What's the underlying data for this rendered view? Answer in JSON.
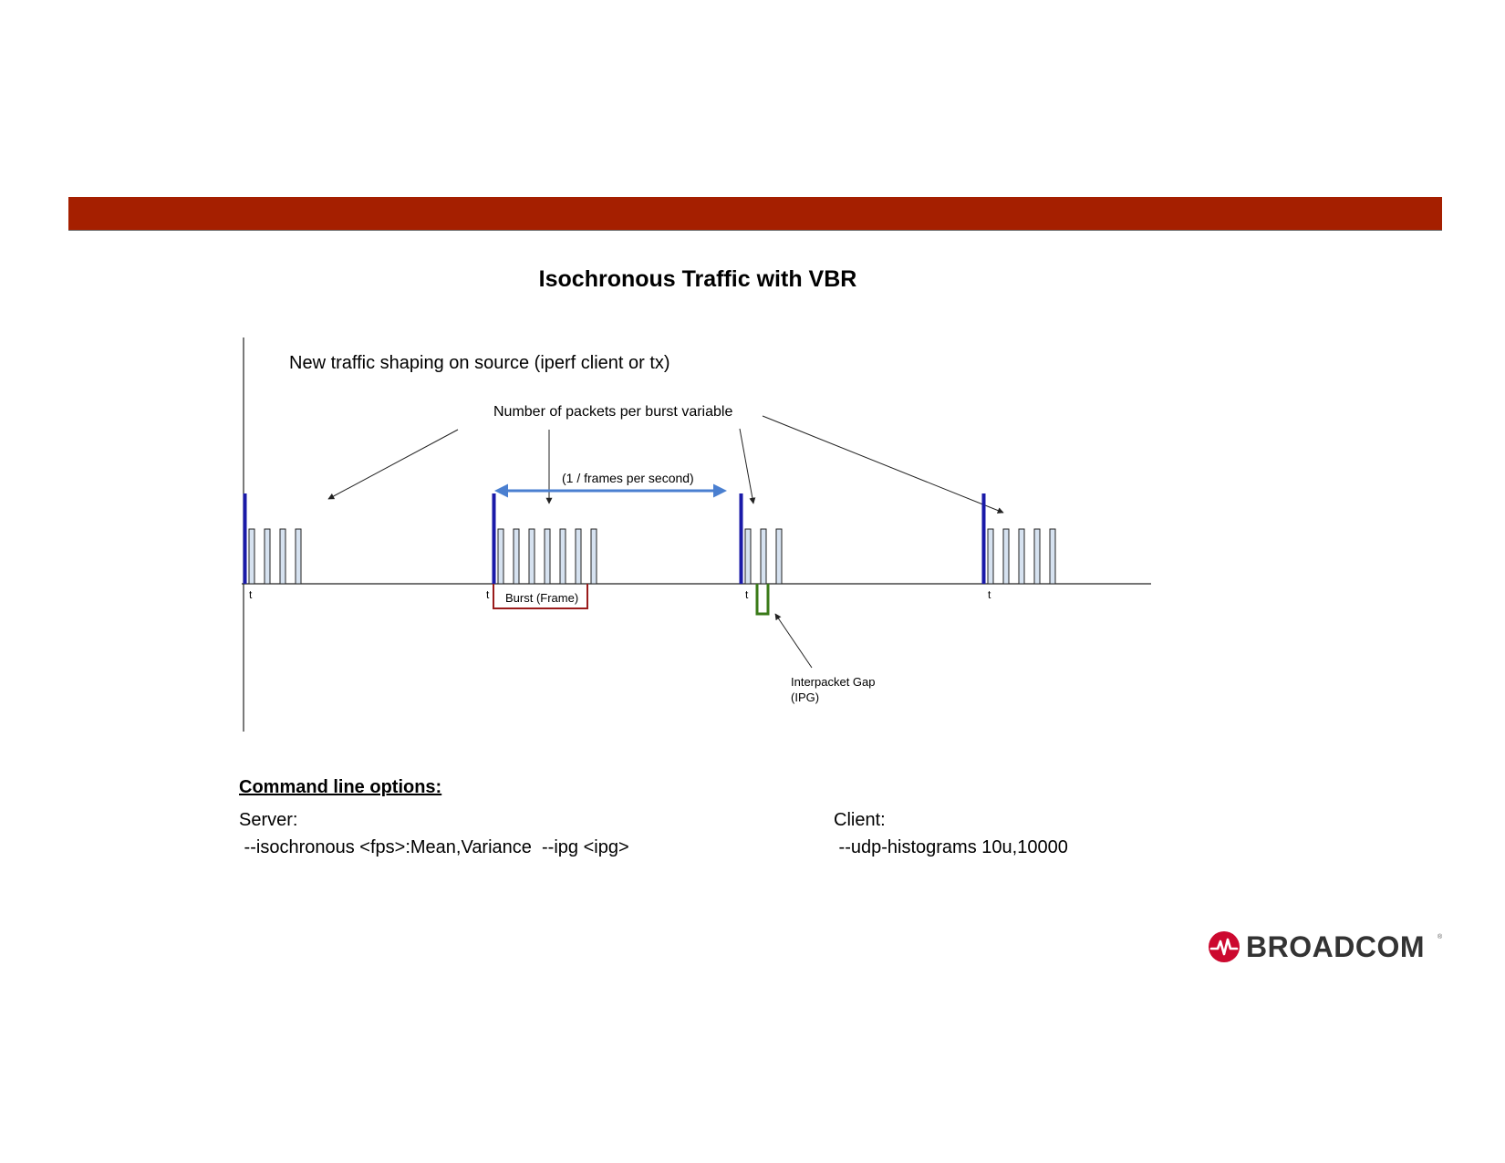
{
  "title": "Isochronous Traffic with VBR",
  "diagram": {
    "subtitle": "New traffic shaping on source (iperf client or tx)",
    "packets_note": "Number of packets per burst variable",
    "period_label": "(1 / frames per second)",
    "burst_label": "Burst (Frame)",
    "ipg_label_line1": "Interpacket Gap",
    "ipg_label_line2": "(IPG)",
    "tick_label": "t",
    "bursts": [
      {
        "packets": 4
      },
      {
        "packets": 7
      },
      {
        "packets": 3
      },
      {
        "packets": 5
      }
    ],
    "colors": {
      "frame_start": "#1a1aa8",
      "packet_fill": "#d6e2f0",
      "period_arrow": "#4a7fd0",
      "burst_bracket": "#9a1b1b",
      "ipg_marker": "#3a7a18"
    }
  },
  "commands": {
    "heading": "Command line options:",
    "server_label": "Server:",
    "server_options": " --isochronous <fps>:Mean,Variance  --ipg <ipg>",
    "client_label": "Client:",
    "client_options": " --udp-histograms 10u,10000"
  },
  "logo": {
    "text": "BROADCOM",
    "mark": "broadcom-pulse-icon",
    "registered": "®",
    "color": "#cc092f"
  },
  "header_bar_color": "#a51f00"
}
